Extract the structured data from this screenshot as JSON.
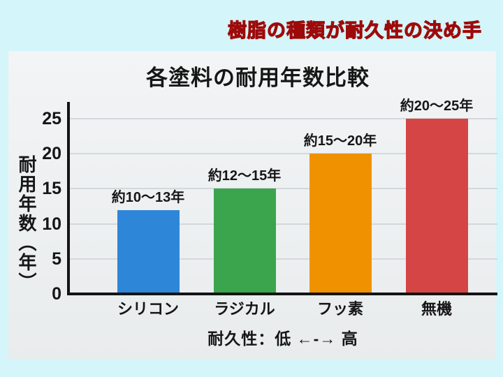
{
  "page": {
    "heading": {
      "text": "樹脂の種類が耐久性の決め手",
      "fill_color": "#f11515",
      "outline_color": "#9e0a0a"
    },
    "colors": {
      "background": "#d4f5f9",
      "panel": "#eef1f2",
      "axis": "#141414",
      "gridline": "#d4d8da",
      "text": "#161616"
    }
  },
  "chart_data": {
    "type": "bar",
    "title": "各塗料の耐用年数比較",
    "ylabel": "耐用年数（年）",
    "xlabel": "",
    "ylim": [
      0,
      25
    ],
    "yticks": [
      0,
      5,
      10,
      15,
      20,
      25
    ],
    "grid": true,
    "legend": "none",
    "categories": [
      "シリコン",
      "ラジカル",
      "フッ素",
      "無機"
    ],
    "values": [
      12,
      15,
      20,
      25
    ],
    "bar_labels": [
      "約10〜13年",
      "約12〜15年",
      "約15〜20年",
      "約20〜25年"
    ],
    "bar_colors": [
      "#2e86d9",
      "#3ba54e",
      "#f09200",
      "#d64545"
    ],
    "footnote": "耐久性：低 ←-→ 高"
  }
}
